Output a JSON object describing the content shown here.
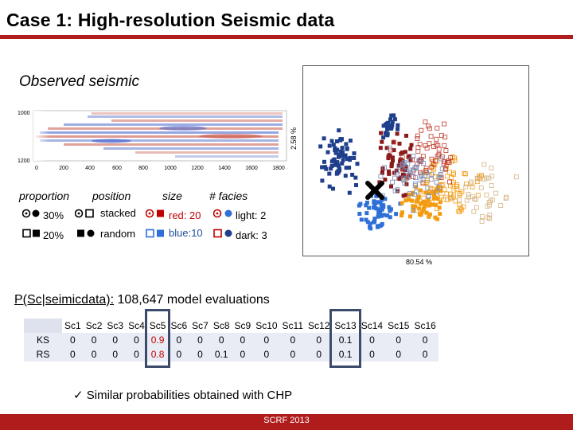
{
  "title": "Case 1: High-resolution Seismic data",
  "subtitle": "Observed seismic",
  "seismic_axes": {
    "y_ticks": [
      "1000",
      "1200"
    ],
    "x_ticks": [
      "0",
      "200",
      "400",
      "600",
      "800",
      "1000",
      "1200",
      "1400",
      "1600",
      "1800"
    ]
  },
  "legend": {
    "headers": [
      "proportion",
      "position",
      "size",
      "# facies"
    ],
    "rows": [
      {
        "proportion": "30%",
        "position": "stacked",
        "size": "red: 20",
        "facies": "light: 2"
      },
      {
        "proportion": "20%",
        "position": "random",
        "size": "blue:10",
        "facies": "dark: 3"
      }
    ]
  },
  "scatter": {
    "y_label": "2.58 %",
    "x_label": "80.54 %"
  },
  "probability_line": {
    "label": "P(Sc|seimicdata):",
    "text": "108,647 model evaluations"
  },
  "table": {
    "columns": [
      "Sc1",
      "Sc2",
      "Sc3",
      "Sc4",
      "Sc5",
      "Sc6",
      "Sc7",
      "Sc8",
      "Sc9",
      "Sc10",
      "Sc11",
      "Sc12",
      "Sc13",
      "Sc14",
      "Sc15",
      "Sc16"
    ],
    "rows": [
      {
        "label": "KS",
        "values": [
          "0",
          "0",
          "0",
          "0",
          "0.9",
          "0",
          "0",
          "0",
          "0",
          "0",
          "0",
          "0",
          "0.1",
          "0",
          "0",
          "0"
        ]
      },
      {
        "label": "RS",
        "values": [
          "0",
          "0",
          "0",
          "0",
          "0.8",
          "0",
          "0",
          "0.1",
          "0",
          "0",
          "0",
          "0",
          "0.1",
          "0",
          "0",
          "0"
        ]
      }
    ]
  },
  "note": "✓  Similar probabilities obtained with CHP",
  "footer": "SCRF 2013",
  "colors": {
    "accent": "#b01c1c",
    "highlight": "#c00000",
    "box": "#3d4b6b"
  }
}
